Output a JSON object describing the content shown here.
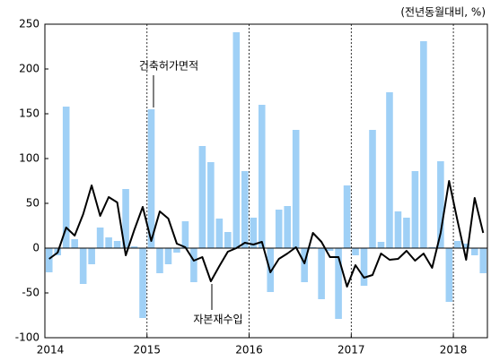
{
  "chart_data": {
    "type": "combo",
    "unit_label": "(전년동월대비, %)",
    "categories": [
      "2014",
      null,
      null,
      null,
      null,
      null,
      null,
      null,
      null,
      null,
      null,
      null,
      "2015",
      null,
      null,
      null,
      null,
      null,
      null,
      null,
      null,
      null,
      null,
      null,
      "2016",
      null,
      null,
      null,
      null,
      null,
      null,
      null,
      null,
      null,
      null,
      null,
      "2017",
      null,
      null,
      null,
      null,
      null,
      null,
      null,
      null,
      null,
      null,
      null,
      "2018",
      null,
      null,
      null
    ],
    "series": [
      {
        "name": "건축허가면적",
        "kind": "bar",
        "color": "#9fd0f6",
        "values": [
          -27,
          -8,
          158,
          10,
          -40,
          -18,
          23,
          12,
          8,
          66,
          2,
          -78,
          155,
          -28,
          -18,
          -5,
          30,
          -38,
          114,
          96,
          33,
          18,
          241,
          86,
          34,
          160,
          -49,
          43,
          47,
          132,
          -38,
          1,
          -57,
          -3,
          -79,
          70,
          -8,
          -42,
          132,
          7,
          174,
          41,
          34,
          86,
          231,
          1,
          97,
          -60,
          8,
          5,
          -8,
          -28
        ]
      },
      {
        "name": "자본재수입",
        "kind": "line",
        "color": "#000000",
        "values": [
          -12,
          -5,
          23,
          14,
          38,
          70,
          36,
          57,
          51,
          -8,
          20,
          46,
          8,
          41,
          33,
          5,
          1,
          -14,
          -10,
          -37,
          -20,
          -4,
          0,
          6,
          4,
          7,
          -27,
          -12,
          -6,
          1,
          -17,
          17,
          7,
          -10,
          -10,
          -43,
          -19,
          -33,
          -30,
          -6,
          -13,
          -12,
          -3,
          -14,
          -6,
          -22,
          17,
          75,
          30,
          -13,
          56,
          17
        ]
      }
    ],
    "ylim": [
      -100,
      250
    ],
    "yticks": [
      -100,
      -50,
      0,
      50,
      100,
      150,
      200,
      250
    ],
    "grid": false,
    "year_dividers": true
  }
}
